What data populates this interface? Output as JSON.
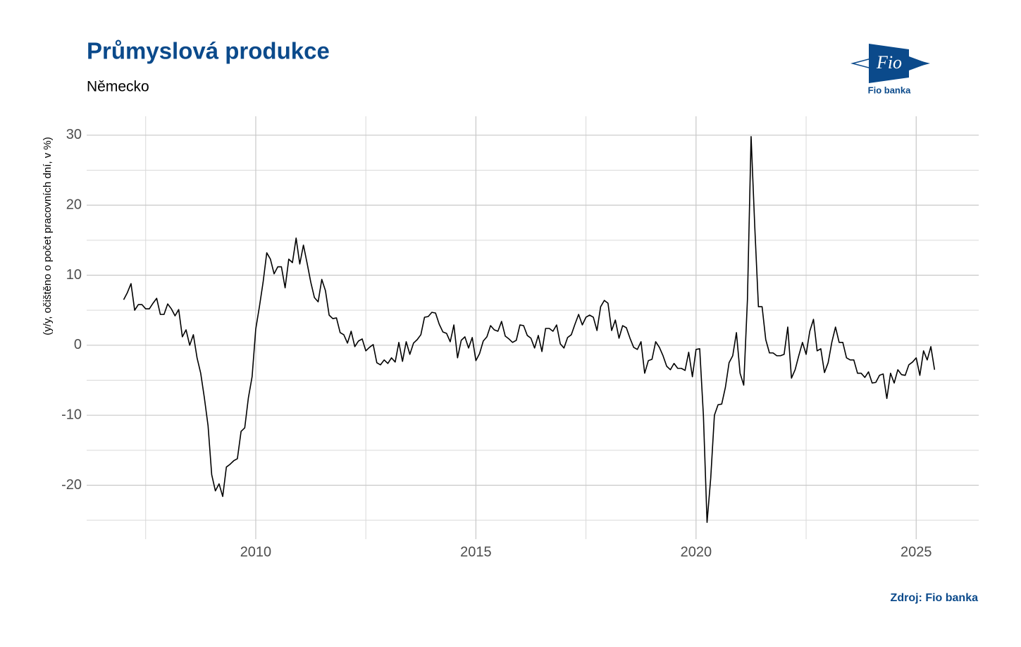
{
  "chart_data": {
    "type": "line",
    "title": "Průmyslová produkce",
    "subtitle": "Německo",
    "y_axis_label": "(y/y, očištěno o počet pracovních dní, v %)",
    "source": "Zdroj: Fio banka",
    "logo_text": "Fio",
    "logo_caption": "Fio banka",
    "xlim": [
      2006.16,
      2026.42
    ],
    "xticks": [
      2010,
      2015,
      2020,
      2025
    ],
    "x_minor_ticks": [
      2007.5,
      2012.5,
      2017.5,
      2022.5
    ],
    "ylim": [
      -27.7,
      32.7
    ],
    "yticks": [
      -20,
      -10,
      0,
      10,
      20,
      30
    ],
    "y_minor_ticks": [
      -25,
      -15,
      -5,
      5,
      15,
      25
    ],
    "grid": true,
    "x": [
      2007.0,
      2007.083,
      2007.167,
      2007.25,
      2007.333,
      2007.417,
      2007.5,
      2007.583,
      2007.667,
      2007.75,
      2007.833,
      2007.917,
      2008.0,
      2008.083,
      2008.167,
      2008.25,
      2008.333,
      2008.417,
      2008.5,
      2008.583,
      2008.667,
      2008.75,
      2008.833,
      2008.917,
      2009.0,
      2009.083,
      2009.167,
      2009.25,
      2009.333,
      2009.417,
      2009.5,
      2009.583,
      2009.667,
      2009.75,
      2009.833,
      2009.917,
      2010.0,
      2010.083,
      2010.167,
      2010.25,
      2010.333,
      2010.417,
      2010.5,
      2010.583,
      2010.667,
      2010.75,
      2010.833,
      2010.917,
      2011.0,
      2011.083,
      2011.167,
      2011.25,
      2011.333,
      2011.417,
      2011.5,
      2011.583,
      2011.667,
      2011.75,
      2011.833,
      2011.917,
      2012.0,
      2012.083,
      2012.167,
      2012.25,
      2012.333,
      2012.417,
      2012.5,
      2012.583,
      2012.667,
      2012.75,
      2012.833,
      2012.917,
      2013.0,
      2013.083,
      2013.167,
      2013.25,
      2013.333,
      2013.417,
      2013.5,
      2013.583,
      2013.667,
      2013.75,
      2013.833,
      2013.917,
      2014.0,
      2014.083,
      2014.167,
      2014.25,
      2014.333,
      2014.417,
      2014.5,
      2014.583,
      2014.667,
      2014.75,
      2014.833,
      2014.917,
      2015.0,
      2015.083,
      2015.167,
      2015.25,
      2015.333,
      2015.417,
      2015.5,
      2015.583,
      2015.667,
      2015.75,
      2015.833,
      2015.917,
      2016.0,
      2016.083,
      2016.167,
      2016.25,
      2016.333,
      2016.417,
      2016.5,
      2016.583,
      2016.667,
      2016.75,
      2016.833,
      2016.917,
      2017.0,
      2017.083,
      2017.167,
      2017.25,
      2017.333,
      2017.417,
      2017.5,
      2017.583,
      2017.667,
      2017.75,
      2017.833,
      2017.917,
      2018.0,
      2018.083,
      2018.167,
      2018.25,
      2018.333,
      2018.417,
      2018.5,
      2018.583,
      2018.667,
      2018.75,
      2018.833,
      2018.917,
      2019.0,
      2019.083,
      2019.167,
      2019.25,
      2019.333,
      2019.417,
      2019.5,
      2019.583,
      2019.667,
      2019.75,
      2019.833,
      2019.917,
      2020.0,
      2020.083,
      2020.167,
      2020.25,
      2020.333,
      2020.417,
      2020.5,
      2020.583,
      2020.667,
      2020.75,
      2020.833,
      2020.917,
      2021.0,
      2021.083,
      2021.167,
      2021.25,
      2021.333,
      2021.417,
      2021.5,
      2021.583,
      2021.667,
      2021.75,
      2021.833,
      2021.917,
      2022.0,
      2022.083,
      2022.167,
      2022.25,
      2022.333,
      2022.417,
      2022.5,
      2022.583,
      2022.667,
      2022.75,
      2022.833,
      2022.917,
      2023.0,
      2023.083,
      2023.167,
      2023.25,
      2023.333,
      2023.417,
      2023.5,
      2023.583,
      2023.667,
      2023.75,
      2023.833,
      2023.917,
      2024.0,
      2024.083,
      2024.167,
      2024.25,
      2024.333,
      2024.417,
      2024.5,
      2024.583,
      2024.667,
      2024.75,
      2024.833,
      2024.917,
      2025.0,
      2025.083,
      2025.167,
      2025.25,
      2025.333,
      2025.417
    ],
    "series": [
      {
        "name": "Německo",
        "color": "#000000",
        "values": [
          6.5,
          7.5,
          8.8,
          5,
          5.8,
          5.8,
          5.2,
          5.2,
          6,
          6.7,
          4.4,
          4.4,
          5.9,
          5.2,
          4.2,
          5.1,
          1.2,
          2.2,
          0,
          1.5,
          -1.8,
          -4,
          -7.5,
          -11.5,
          -18.5,
          -20.8,
          -19.8,
          -21.6,
          -17.4,
          -17,
          -16.5,
          -16.2,
          -12.3,
          -11.8,
          -7.5,
          -4.5,
          2.3,
          5.5,
          9,
          13.2,
          12.3,
          10.2,
          11.2,
          11.2,
          8.2,
          12.3,
          11.8,
          15.3,
          11.6,
          14.3,
          11.7,
          9,
          6.8,
          6.2,
          9.4,
          7.8,
          4.3,
          3.8,
          3.9,
          1.8,
          1.5,
          0.3,
          2,
          -0.2,
          0.6,
          0.9,
          -0.8,
          -0.3,
          0.1,
          -2.5,
          -2.8,
          -2.1,
          -2.6,
          -1.8,
          -2.4,
          0.4,
          -2.3,
          0.5,
          -1.3,
          0.3,
          0.8,
          1.5,
          4,
          4.1,
          4.7,
          4.6,
          3,
          1.9,
          1.7,
          0.5,
          2.9,
          -1.8,
          0.7,
          1.2,
          -0.4,
          1.1,
          -2.2,
          -1.2,
          0.6,
          1.2,
          2.8,
          2.2,
          2,
          3.4,
          1.3,
          0.9,
          0.4,
          0.7,
          2.9,
          2.8,
          1.4,
          1,
          -0.4,
          1.4,
          -0.9,
          2.4,
          2.4,
          2,
          2.9,
          0.2,
          -0.4,
          1.1,
          1.5,
          3,
          4.4,
          2.9,
          4,
          4.3,
          4,
          2.1,
          5.5,
          6.4,
          6,
          2.1,
          3.6,
          1,
          2.8,
          2.5,
          1,
          -0.3,
          -0.6,
          0.5,
          -4,
          -2.2,
          -2,
          0.5,
          -0.3,
          -1.5,
          -3,
          -3.5,
          -2.6,
          -3.3,
          -3.3,
          -3.6,
          -1,
          -4.5,
          -0.6,
          -0.5,
          -10,
          -25.3,
          -19,
          -10,
          -8.5,
          -8.4,
          -6,
          -2.5,
          -1.5,
          1.8,
          -4,
          -5.7,
          6.5,
          29.8,
          17,
          5.5,
          5.5,
          0.8,
          -1.1,
          -1.1,
          -1.5,
          -1.5,
          -1.3,
          2.6,
          -4.7,
          -3.5,
          -1.5,
          0.4,
          -1.3,
          2,
          3.7,
          -0.8,
          -0.5,
          -3.9,
          -2.5,
          0.4,
          2.6,
          0.4,
          0.4,
          -1.8,
          -2.1,
          -2.1,
          -4,
          -4,
          -4.6,
          -3.8,
          -5.4,
          -5.3,
          -4.3,
          -4.1,
          -7.6,
          -4,
          -5.4,
          -3.5,
          -4.2,
          -4.3,
          -2.8,
          -2.4,
          -1.8,
          -4.3,
          -0.8,
          -2.1,
          -0.2,
          -3.5
        ]
      }
    ]
  }
}
